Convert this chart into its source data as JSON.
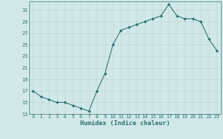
{
  "x": [
    0,
    1,
    2,
    3,
    4,
    5,
    6,
    7,
    8,
    9,
    10,
    11,
    12,
    13,
    14,
    15,
    16,
    17,
    18,
    19,
    20,
    21,
    22,
    23
  ],
  "y": [
    17,
    16,
    15.5,
    15,
    15,
    14.5,
    14,
    13.5,
    17,
    20,
    25,
    27.5,
    28,
    28.5,
    29,
    29.5,
    30,
    32,
    30,
    29.5,
    29.5,
    29,
    26,
    24
  ],
  "line_color": "#2d6e6e",
  "marker": "D",
  "marker_size": 2.0,
  "bg_color": "#d0e8e8",
  "grid_color": "#b8d0d0",
  "xlabel": "Humidex (Indice chaleur)",
  "xlim": [
    -0.5,
    23.5
  ],
  "ylim": [
    13,
    32.5
  ],
  "yticks": [
    13,
    15,
    17,
    19,
    21,
    23,
    25,
    27,
    29,
    31
  ],
  "xticks": [
    0,
    1,
    2,
    3,
    4,
    5,
    6,
    7,
    8,
    9,
    10,
    11,
    12,
    13,
    14,
    15,
    16,
    17,
    18,
    19,
    20,
    21,
    22,
    23
  ],
  "tick_fontsize": 5.0,
  "xlabel_fontsize": 6.5,
  "tick_color": "#2d6e6e",
  "axis_color": "#2d6e6e",
  "linewidth": 0.8
}
